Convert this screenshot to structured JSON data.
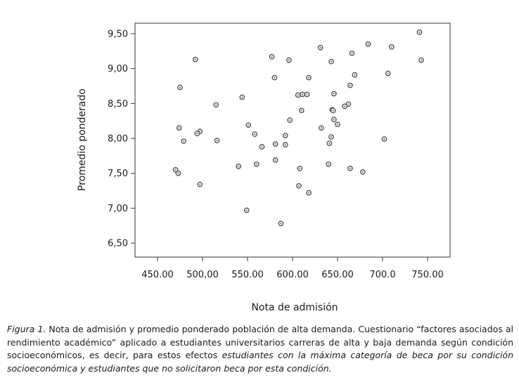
{
  "chart_data": {
    "type": "scatter",
    "xlabel": "Nota de admisión",
    "ylabel": "Promedio ponderado",
    "xlim": [
      425,
      775
    ],
    "ylim": [
      6.3,
      9.65
    ],
    "x_ticks": [
      450,
      500,
      550,
      600,
      650,
      700,
      750
    ],
    "x_tick_labels": [
      "450.00",
      "500,00",
      "550.00",
      "600.00",
      "650.00",
      "700.0",
      "750.00"
    ],
    "y_ticks": [
      6.5,
      7.0,
      7.5,
      8.0,
      8.5,
      9.0,
      9.5
    ],
    "y_tick_labels": [
      "6,50",
      "7,00",
      "7,50",
      "8,00",
      "8,50",
      "9,00",
      "9,50"
    ],
    "grid": false,
    "series": [
      {
        "points": [
          [
            741,
            9.52
          ],
          [
            684,
            9.35
          ],
          [
            710,
            9.31
          ],
          [
            631,
            9.3
          ],
          [
            666,
            9.22
          ],
          [
            577,
            9.17
          ],
          [
            492,
            9.13
          ],
          [
            596,
            9.12
          ],
          [
            643,
            9.1
          ],
          [
            743,
            9.12
          ],
          [
            706,
            8.93
          ],
          [
            669,
            8.91
          ],
          [
            580,
            8.87
          ],
          [
            618,
            8.87
          ],
          [
            475,
            8.73
          ],
          [
            664,
            8.76
          ],
          [
            646,
            8.64
          ],
          [
            606,
            8.62
          ],
          [
            611,
            8.63
          ],
          [
            616,
            8.63
          ],
          [
            544,
            8.59
          ],
          [
            515,
            8.48
          ],
          [
            662,
            8.49
          ],
          [
            658,
            8.46
          ],
          [
            610,
            8.4
          ],
          [
            644,
            8.41
          ],
          [
            645,
            8.4
          ],
          [
            646,
            8.27
          ],
          [
            650,
            8.2
          ],
          [
            597,
            8.26
          ],
          [
            551,
            8.19
          ],
          [
            632,
            8.15
          ],
          [
            474,
            8.15
          ],
          [
            497,
            8.1
          ],
          [
            494,
            8.07
          ],
          [
            558,
            8.06
          ],
          [
            592,
            8.04
          ],
          [
            643,
            8.02
          ],
          [
            516,
            7.97
          ],
          [
            479,
            7.96
          ],
          [
            702,
            7.99
          ],
          [
            641,
            7.93
          ],
          [
            581,
            7.92
          ],
          [
            592,
            7.91
          ],
          [
            566,
            7.88
          ],
          [
            581,
            7.69
          ],
          [
            560,
            7.63
          ],
          [
            540,
            7.6
          ],
          [
            640,
            7.63
          ],
          [
            608,
            7.57
          ],
          [
            664,
            7.57
          ],
          [
            678,
            7.52
          ],
          [
            470,
            7.55
          ],
          [
            473,
            7.5
          ],
          [
            497,
            7.34
          ],
          [
            607,
            7.32
          ],
          [
            618,
            7.22
          ],
          [
            549,
            6.97
          ],
          [
            587,
            6.78
          ]
        ]
      }
    ]
  },
  "caption": {
    "figure_label": "Figura 1.",
    "text_normal": " Nota de admisión y promedio ponderado población de alta demanda. Cuestionario “factores asociados al rendimiento académico” aplicado a estudiantes universitarios carreras de alta y baja demanda según condición socioeconómicos, es decir, para estos efectos ",
    "text_italic": "estudiantes con la máxima categoría de beca por su condición socioeconómica y estudiantes que no solicitaron beca por esta condición."
  }
}
